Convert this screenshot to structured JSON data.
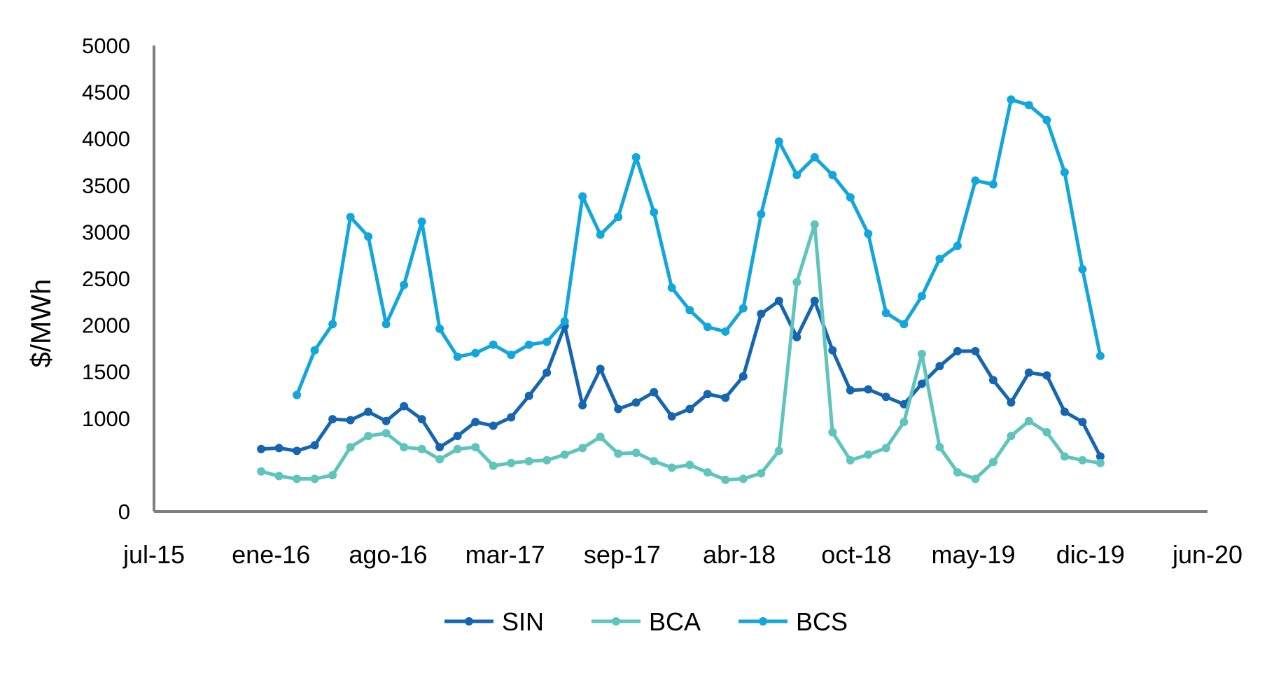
{
  "chart_data": {
    "type": "line",
    "ylabel": "$/MWh",
    "xlabel": "",
    "ylim": [
      0,
      5000
    ],
    "yticks": [
      0,
      1000,
      1500,
      2000,
      2500,
      3000,
      3500,
      4000,
      4500,
      5000
    ],
    "xlim": [
      "2015-07",
      "2020-06"
    ],
    "xticks": [
      "jul-15",
      "ene-16",
      "ago-16",
      "mar-17",
      "sep-17",
      "abr-18",
      "oct-18",
      "may-19",
      "dic-19",
      "jun-20"
    ],
    "grid": false,
    "legend": "bottom-center",
    "months": [
      "2016-01",
      "2016-02",
      "2016-03",
      "2016-04",
      "2016-05",
      "2016-06",
      "2016-07",
      "2016-08",
      "2016-09",
      "2016-10",
      "2016-11",
      "2016-12",
      "2017-01",
      "2017-02",
      "2017-03",
      "2017-04",
      "2017-05",
      "2017-06",
      "2017-07",
      "2017-08",
      "2017-09",
      "2017-10",
      "2017-11",
      "2017-12",
      "2018-01",
      "2018-02",
      "2018-03",
      "2018-04",
      "2018-05",
      "2018-06",
      "2018-07",
      "2018-08",
      "2018-09",
      "2018-10",
      "2018-11",
      "2018-12",
      "2019-01",
      "2019-02",
      "2019-03",
      "2019-04",
      "2019-05",
      "2019-06",
      "2019-07",
      "2019-08",
      "2019-09",
      "2019-10",
      "2019-11",
      "2019-12"
    ],
    "series": [
      {
        "name": "SIN",
        "color": "#1565b0",
        "values": [
          670,
          680,
          650,
          710,
          990,
          980,
          1070,
          970,
          1130,
          990,
          690,
          810,
          960,
          920,
          1010,
          1240,
          1490,
          1990,
          1140,
          1530,
          1100,
          1170,
          1280,
          1020,
          1100,
          1260,
          1220,
          1450,
          2120,
          2260,
          1870,
          2260,
          1730,
          1300,
          1310,
          1230,
          1150,
          1370,
          1560,
          1720,
          1720,
          1410,
          1170,
          1490,
          1460,
          1070,
          960,
          590
        ]
      },
      {
        "name": "BCA",
        "color": "#5ec4bc",
        "values": [
          430,
          380,
          350,
          350,
          390,
          690,
          810,
          840,
          690,
          670,
          560,
          670,
          690,
          490,
          520,
          540,
          550,
          610,
          680,
          800,
          620,
          630,
          540,
          470,
          500,
          420,
          340,
          350,
          410,
          650,
          2460,
          3080,
          850,
          550,
          610,
          680,
          960,
          1690,
          690,
          420,
          350,
          530,
          810,
          970,
          850,
          590,
          550,
          520
        ]
      },
      {
        "name": "BCS",
        "color": "#12a6dc",
        "values": [
          null,
          null,
          1250,
          1730,
          2010,
          3160,
          2950,
          2010,
          2430,
          3110,
          1960,
          1660,
          1700,
          1790,
          1680,
          1790,
          1820,
          2040,
          3380,
          2970,
          3160,
          3800,
          3210,
          2400,
          2160,
          1980,
          1930,
          2180,
          3190,
          3970,
          3610,
          3800,
          3610,
          3370,
          2980,
          2130,
          2010,
          2310,
          2710,
          2850,
          3550,
          3510,
          4420,
          4360,
          4200,
          3640,
          2600,
          1670
        ]
      }
    ]
  }
}
